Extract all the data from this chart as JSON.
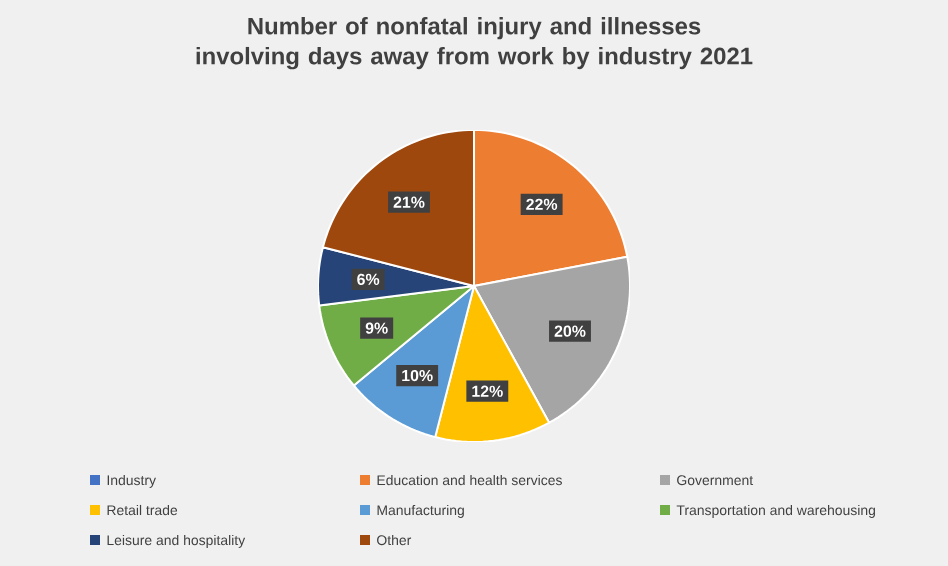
{
  "chart_data": {
    "type": "pie",
    "title": "Number of nonfatal injury and illnesses involving days away from work by industry 2021",
    "categories": [
      "Industry",
      "Education and health services",
      "Government",
      "Retail trade",
      "Manufacturing",
      "Transportation and warehousing",
      "Leisure and hospitality",
      "Other"
    ],
    "values": [
      0,
      22,
      20,
      12,
      10,
      9,
      6,
      21
    ],
    "value_labels": [
      null,
      "22%",
      "20%",
      "12%",
      "10%",
      "9%",
      "6%",
      "21%"
    ],
    "colors": [
      "#4472c4",
      "#ed7d31",
      "#a5a5a5",
      "#ffc000",
      "#5b9bd5",
      "#70ad47",
      "#264478",
      "#9e480e"
    ],
    "legend": "bottom"
  }
}
